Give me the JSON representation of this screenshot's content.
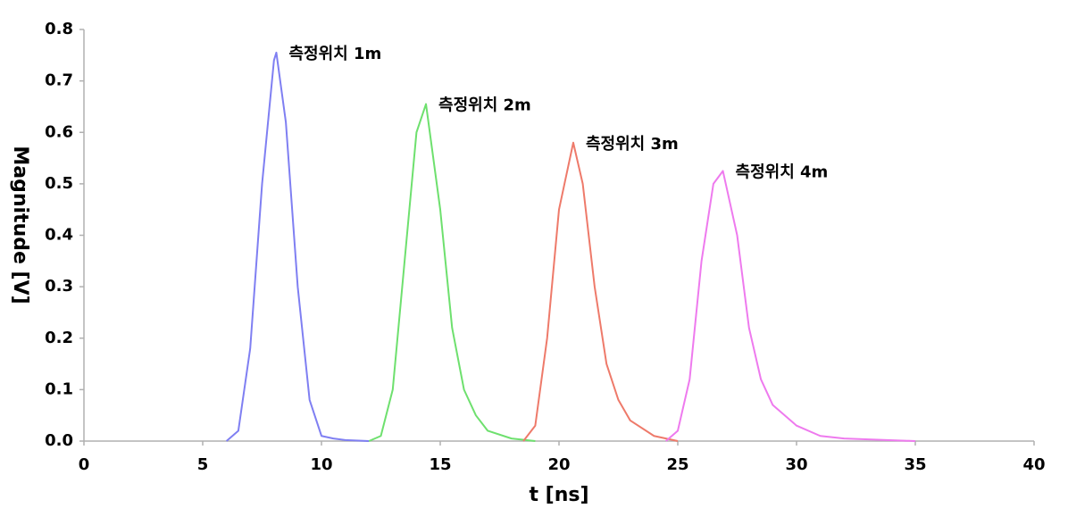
{
  "chart_data": {
    "type": "line",
    "xlabel": "t [ns]",
    "ylabel": "Magnitude [V]",
    "xlim": [
      0,
      40
    ],
    "xticks": [
      0,
      5,
      10,
      15,
      20,
      25,
      30,
      35,
      40
    ],
    "ylim": [
      0,
      0.8
    ],
    "yticks": [
      {
        "value": 0,
        "label": "0.0"
      },
      0.1,
      0.2,
      0.3,
      0.4,
      0.5,
      0.6,
      0.7,
      0.8
    ],
    "grid": false,
    "series": [
      {
        "name": "측정위치 1m",
        "color": "#7f7ff2",
        "x": [
          6,
          6.5,
          7,
          7.5,
          8,
          8.1,
          8.5,
          9,
          9.5,
          10,
          10.5,
          11,
          12
        ],
        "values": [
          0,
          0.02,
          0.18,
          0.5,
          0.74,
          0.755,
          0.62,
          0.3,
          0.08,
          0.01,
          0.005,
          0.002,
          0
        ]
      },
      {
        "name": "측정위치 2m",
        "color": "#6ee06e",
        "x": [
          12,
          12.5,
          13,
          13.5,
          14,
          14.4,
          15,
          15.5,
          16,
          16.5,
          17,
          18,
          19
        ],
        "values": [
          0,
          0.01,
          0.1,
          0.35,
          0.6,
          0.655,
          0.45,
          0.22,
          0.1,
          0.05,
          0.02,
          0.005,
          0
        ]
      },
      {
        "name": "측정위치 3m",
        "color": "#ee7a6a",
        "x": [
          18.5,
          19,
          19.5,
          20,
          20.6,
          21,
          21.5,
          22,
          22.5,
          23,
          24,
          25
        ],
        "values": [
          0,
          0.03,
          0.2,
          0.45,
          0.58,
          0.5,
          0.3,
          0.15,
          0.08,
          0.04,
          0.01,
          0
        ]
      },
      {
        "name": "측정위치 4m",
        "color": "#ee7aee",
        "x": [
          24.5,
          25,
          25.5,
          26,
          26.5,
          26.9,
          27.5,
          28,
          28.5,
          29,
          30,
          31,
          32,
          35
        ],
        "values": [
          0,
          0.02,
          0.12,
          0.35,
          0.5,
          0.525,
          0.4,
          0.22,
          0.12,
          0.07,
          0.03,
          0.01,
          0.005,
          0
        ]
      }
    ]
  }
}
